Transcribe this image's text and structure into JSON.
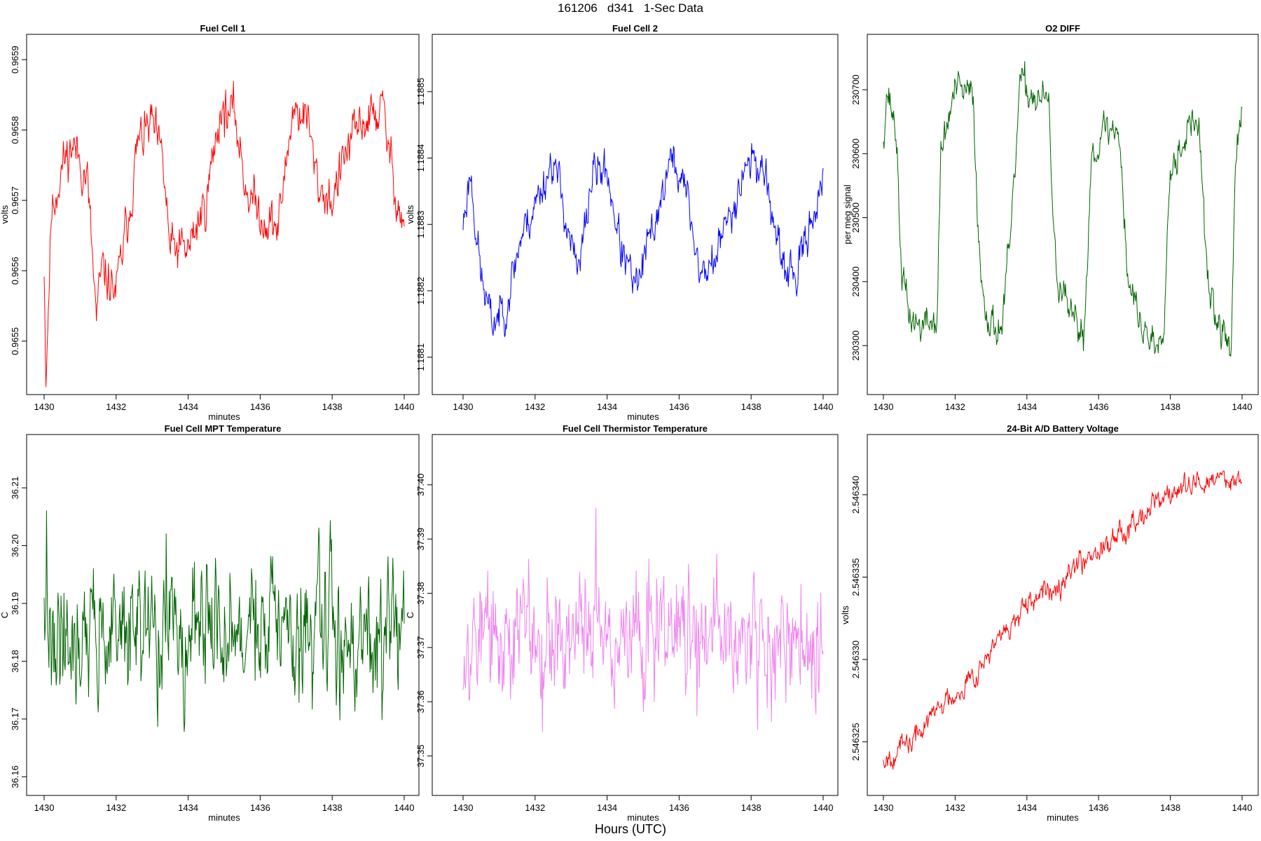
{
  "page": {
    "title": "161206   d341   1-Sec Data",
    "footer_label": "Hours (UTC)"
  },
  "chart_data": [
    {
      "id": "fc1",
      "type": "line",
      "title": "Fuel Cell 1",
      "xlabel": "minutes",
      "ylabel": "volts",
      "color": "#ff0000",
      "xlim": [
        1430,
        1440
      ],
      "ylim": [
        0.96543,
        0.96593
      ],
      "xticks": [
        1430,
        1432,
        1434,
        1436,
        1438,
        1440
      ],
      "yticks": [
        0.9655,
        0.9656,
        0.9657,
        0.9658,
        0.9659
      ],
      "ytick_labels": [
        "0.9655",
        "0.9656",
        "0.9657",
        "0.9658",
        "0.9659"
      ],
      "n_points": 600,
      "anchors": [
        [
          1430,
          0.96561
        ],
        [
          1430.05,
          0.96545
        ],
        [
          1430.2,
          0.96568
        ],
        [
          1430.5,
          0.96575
        ],
        [
          1430.8,
          0.96578
        ],
        [
          1431.2,
          0.96573
        ],
        [
          1431.45,
          0.96553
        ],
        [
          1431.6,
          0.9656
        ],
        [
          1432.0,
          0.96557
        ],
        [
          1432.4,
          0.9657
        ],
        [
          1432.6,
          0.96578
        ],
        [
          1433.0,
          0.96581
        ],
        [
          1433.3,
          0.96575
        ],
        [
          1433.5,
          0.96563
        ],
        [
          1434.0,
          0.96563
        ],
        [
          1434.5,
          0.9657
        ],
        [
          1434.9,
          0.96583
        ],
        [
          1435.3,
          0.96582
        ],
        [
          1435.6,
          0.96572
        ],
        [
          1436.0,
          0.96568
        ],
        [
          1436.5,
          0.96566
        ],
        [
          1436.9,
          0.96583
        ],
        [
          1437.3,
          0.96582
        ],
        [
          1437.6,
          0.96572
        ],
        [
          1438.0,
          0.9657
        ],
        [
          1438.4,
          0.96577
        ],
        [
          1438.8,
          0.96581
        ],
        [
          1439.4,
          0.96583
        ],
        [
          1439.7,
          0.96573
        ],
        [
          1440,
          0.96566
        ]
      ],
      "noise": 2.6e-05,
      "seed": 11
    },
    {
      "id": "fc2",
      "type": "line",
      "title": "Fuel Cell 2",
      "xlabel": "minutes",
      "ylabel": "volts",
      "color": "#0000ff",
      "xlim": [
        1430,
        1440
      ],
      "ylim": [
        1.18805,
        1.18858
      ],
      "xticks": [
        1430,
        1432,
        1434,
        1436,
        1438,
        1440
      ],
      "yticks": [
        1.1881,
        1.1882,
        1.1883,
        1.1884,
        1.1885
      ],
      "ytick_labels": [
        "1.1881",
        "1.1882",
        "1.1883",
        "1.1884",
        "1.1885"
      ],
      "n_points": 600,
      "anchors": [
        [
          1430,
          1.1883
        ],
        [
          1430.2,
          1.18838
        ],
        [
          1430.5,
          1.18822
        ],
        [
          1430.8,
          1.18815
        ],
        [
          1431.2,
          1.18818
        ],
        [
          1431.6,
          1.18828
        ],
        [
          1432.0,
          1.18833
        ],
        [
          1432.5,
          1.1884
        ],
        [
          1432.9,
          1.1883
        ],
        [
          1433.2,
          1.18822
        ],
        [
          1433.6,
          1.18838
        ],
        [
          1434.0,
          1.18838
        ],
        [
          1434.4,
          1.18826
        ],
        [
          1434.8,
          1.1882
        ],
        [
          1435.3,
          1.1883
        ],
        [
          1435.8,
          1.1884
        ],
        [
          1436.2,
          1.18835
        ],
        [
          1436.6,
          1.18822
        ],
        [
          1437.0,
          1.18825
        ],
        [
          1437.5,
          1.18833
        ],
        [
          1437.9,
          1.1884
        ],
        [
          1438.4,
          1.18838
        ],
        [
          1438.8,
          1.18824
        ],
        [
          1439.3,
          1.18822
        ],
        [
          1439.6,
          1.1883
        ],
        [
          1440,
          1.18836
        ]
      ],
      "noise": 2.4e-05,
      "seed": 23
    },
    {
      "id": "o2",
      "type": "line",
      "title": "O2 DIFF",
      "xlabel": "",
      "ylabel": "per meg signal",
      "color": "#006400",
      "xlim": [
        1430,
        1440
      ],
      "ylim": [
        230230,
        230780
      ],
      "xticks": [
        1430,
        1432,
        1434,
        1436,
        1438,
        1440
      ],
      "yticks": [
        230300,
        230400,
        230500,
        230600,
        230700
      ],
      "ytick_labels": [
        "230300",
        "230400",
        "230500",
        "230600",
        "230700"
      ],
      "n_points": 600,
      "anchors": [
        [
          1430,
          230630
        ],
        [
          1430.1,
          230700
        ],
        [
          1430.35,
          230640
        ],
        [
          1430.5,
          230420
        ],
        [
          1430.7,
          230350
        ],
        [
          1431.0,
          230330
        ],
        [
          1431.5,
          230340
        ],
        [
          1431.6,
          230600
        ],
        [
          1432.0,
          230700
        ],
        [
          1432.5,
          230690
        ],
        [
          1432.7,
          230410
        ],
        [
          1433.0,
          230330
        ],
        [
          1433.3,
          230330
        ],
        [
          1433.6,
          230500
        ],
        [
          1433.8,
          230710
        ],
        [
          1434.2,
          230690
        ],
        [
          1434.6,
          230680
        ],
        [
          1434.8,
          230420
        ],
        [
          1435.2,
          230340
        ],
        [
          1435.6,
          230320
        ],
        [
          1435.8,
          230600
        ],
        [
          1436.2,
          230640
        ],
        [
          1436.6,
          230630
        ],
        [
          1436.8,
          230410
        ],
        [
          1437.2,
          230330
        ],
        [
          1437.6,
          230300
        ],
        [
          1437.8,
          230330
        ],
        [
          1438.0,
          230580
        ],
        [
          1438.5,
          230640
        ],
        [
          1438.8,
          230650
        ],
        [
          1439.0,
          230420
        ],
        [
          1439.3,
          230330
        ],
        [
          1439.7,
          230300
        ],
        [
          1439.82,
          230600
        ],
        [
          1440,
          230650
        ]
      ],
      "noise": 22,
      "seed": 37
    },
    {
      "id": "mpt",
      "type": "line",
      "title": "Fuel Cell MPT Temperature",
      "xlabel": "minutes",
      "ylabel": "C",
      "color": "#006400",
      "xlim": [
        1430,
        1440
      ],
      "ylim": [
        36.1575,
        36.2185
      ],
      "xticks": [
        1430,
        1432,
        1434,
        1436,
        1438,
        1440
      ],
      "yticks": [
        36.16,
        36.17,
        36.18,
        36.19,
        36.2,
        36.21
      ],
      "ytick_labels": [
        "36.16",
        "36.17",
        "36.18",
        "36.19",
        "36.20",
        "36.21"
      ],
      "n_points": 600,
      "anchors": [
        [
          1430,
          36.185
        ],
        [
          1440,
          36.185
        ]
      ],
      "noise": 0.0085,
      "spike": 0.012,
      "seed": 41
    },
    {
      "id": "thermistor",
      "type": "line",
      "title": "Fuel Cell Thermistor Temperature",
      "xlabel": "minutes",
      "ylabel": "C",
      "color": "#ee82ee",
      "xlim": [
        1430,
        1440
      ],
      "ylim": [
        37.3435,
        37.4085
      ],
      "xticks": [
        1430,
        1432,
        1434,
        1436,
        1438,
        1440
      ],
      "yticks": [
        37.35,
        37.36,
        37.37,
        37.38,
        37.39,
        37.4
      ],
      "ytick_labels": [
        "37.35",
        "37.36",
        "37.37",
        "37.38",
        "37.39",
        "37.40"
      ],
      "n_points": 600,
      "anchors": [
        [
          1430,
          37.372
        ],
        [
          1440,
          37.372
        ]
      ],
      "noise": 0.0085,
      "spike": 0.013,
      "seed": 53
    },
    {
      "id": "battery",
      "type": "line",
      "title": "24-Bit A/D Battery Voltage",
      "xlabel": "minutes",
      "ylabel": "volts",
      "color": "#ff0000",
      "xlim": [
        1430,
        1440
      ],
      "ylim": [
        2.546322,
        2.5463434
      ],
      "xticks": [
        1430,
        1432,
        1434,
        1436,
        1438,
        1440
      ],
      "yticks": [
        2.546325,
        2.54633,
        2.546335,
        2.54634
      ],
      "ytick_labels": [
        "2.546325",
        "2.546330",
        "2.546335",
        "2.546340"
      ],
      "n_points": 600,
      "anchors": [
        [
          1430,
          2.546324
        ],
        [
          1430.8,
          2.546325
        ],
        [
          1431.5,
          2.546327
        ],
        [
          1432.5,
          2.546329
        ],
        [
          1433.5,
          2.546332
        ],
        [
          1434.5,
          2.546334
        ],
        [
          1435.5,
          2.546336
        ],
        [
          1436.5,
          2.5463375
        ],
        [
          1437.5,
          2.5463395
        ],
        [
          1438.5,
          2.5463405
        ],
        [
          1439.5,
          2.546341
        ],
        [
          1440,
          2.546341
        ]
      ],
      "noise": 5.5e-07,
      "seed": 67
    }
  ]
}
